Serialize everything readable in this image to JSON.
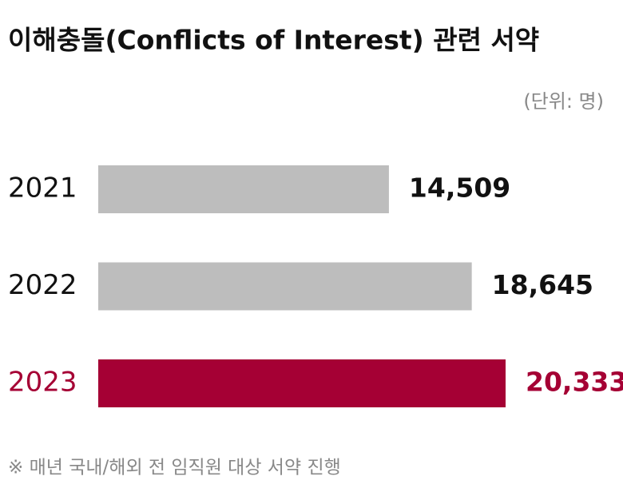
{
  "chart_data": {
    "type": "bar",
    "orientation": "horizontal",
    "title": "이해충돌(Conflicts of Interest) 관련 서약",
    "unit_label": "(단위: 명)",
    "categories": [
      "2021",
      "2022",
      "2023"
    ],
    "values": [
      14509,
      18645,
      20333
    ],
    "value_labels": [
      "14,509",
      "18,645",
      "20,333"
    ],
    "colors": [
      "#bdbdbd",
      "#bdbdbd",
      "#a50034"
    ],
    "label_colors": [
      "#111111",
      "#111111",
      "#a50034"
    ],
    "note": "※ 매년 국내/해외 전 임직원 대상 서약 진행"
  }
}
